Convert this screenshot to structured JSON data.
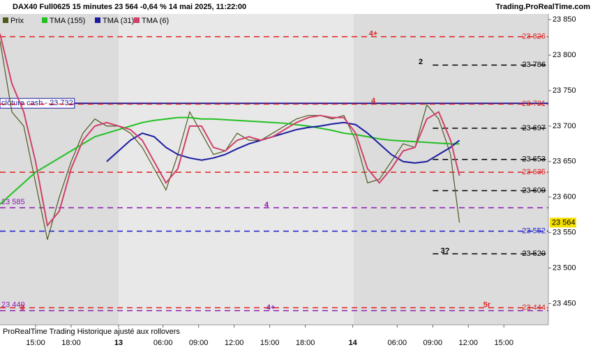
{
  "chart_data": {
    "type": "line",
    "title": "DAX40 Full0625 15 minutes 23 564 -0,64 % 14 mai 2025, 11:22:00",
    "source": "Trading.ProRealTime.com",
    "footer": "ProRealTime Trading  Historique ajusté aux rollovers",
    "xlim": [
      0,
      185
    ],
    "xticks": [
      {
        "value": 12,
        "label": "15:00"
      },
      {
        "value": 24,
        "label": "18:00"
      },
      {
        "value": 40,
        "label": "13"
      },
      {
        "value": 55,
        "label": "06:00"
      },
      {
        "value": 67,
        "label": "09:00"
      },
      {
        "value": 79,
        "label": "12:00"
      },
      {
        "value": 91,
        "label": "15:00"
      },
      {
        "value": 103,
        "label": "18:00"
      },
      {
        "value": 119,
        "label": "14"
      },
      {
        "value": 134,
        "label": "06:00"
      },
      {
        "value": 146,
        "label": "09:00"
      },
      {
        "value": 158,
        "label": "12:00"
      },
      {
        "value": 170,
        "label": "15:00"
      }
    ],
    "ylim": [
      23420,
      23858
    ],
    "yticks": [
      {
        "value": 23450,
        "label": "23 450"
      },
      {
        "value": 23500,
        "label": "23 500"
      },
      {
        "value": 23550,
        "label": "23 550"
      },
      {
        "value": 23600,
        "label": "23 600"
      },
      {
        "value": 23650,
        "label": "23 650"
      },
      {
        "value": 23700,
        "label": "23 700"
      },
      {
        "value": 23750,
        "label": "23 750"
      },
      {
        "value": 23800,
        "label": "23 800"
      },
      {
        "value": 23850,
        "label": "23 850"
      }
    ],
    "x": [
      0,
      4,
      8,
      12,
      16,
      20,
      24,
      28,
      32,
      36,
      40,
      44,
      48,
      52,
      56,
      60,
      64,
      68,
      72,
      76,
      80,
      84,
      88,
      92,
      96,
      100,
      104,
      108,
      112,
      116,
      120,
      124,
      128,
      132,
      136,
      140,
      144,
      148,
      152,
      155
    ],
    "series": [
      {
        "name": "Prix",
        "color": "#4d5a1e",
        "values": [
          23820,
          23720,
          23700,
          23620,
          23540,
          23600,
          23650,
          23690,
          23710,
          23700,
          23700,
          23690,
          23670,
          23640,
          23610,
          23660,
          23720,
          23690,
          23660,
          23665,
          23690,
          23680,
          23680,
          23690,
          23700,
          23710,
          23715,
          23715,
          23710,
          23715,
          23680,
          23620,
          23625,
          23650,
          23675,
          23670,
          23730,
          23710,
          23660,
          23564
        ]
      },
      {
        "name": "TMA (155)",
        "color": "#22c022",
        "values": [
          23590,
          23605,
          23620,
          23635,
          23645,
          23655,
          23665,
          23675,
          23685,
          23690,
          23695,
          23700,
          23705,
          23708,
          23710,
          23712,
          23712,
          23710,
          23710,
          23709,
          23708,
          23707,
          23706,
          23705,
          23704,
          23702,
          23700,
          23697,
          23694,
          23690,
          23688,
          23685,
          23682,
          23680,
          23679,
          23678,
          23677,
          23676,
          23675,
          23675
        ]
      },
      {
        "name": "TMA (31)",
        "color": "#1a1aa0",
        "values": [
          null,
          null,
          null,
          null,
          null,
          null,
          null,
          null,
          null,
          23650,
          23665,
          23680,
          23690,
          23685,
          23670,
          23660,
          23655,
          23652,
          23655,
          23660,
          23668,
          23675,
          23680,
          23685,
          23690,
          23695,
          23698,
          23700,
          23703,
          23705,
          23702,
          23690,
          23675,
          23660,
          23650,
          23648,
          23650,
          23660,
          23670,
          23680
        ]
      },
      {
        "name": "TMA (6)",
        "color": "#d0406a",
        "values": [
          23830,
          23760,
          23720,
          23650,
          23560,
          23580,
          23640,
          23680,
          23700,
          23705,
          23700,
          23695,
          23680,
          23650,
          23620,
          23640,
          23700,
          23700,
          23670,
          23665,
          23680,
          23685,
          23680,
          23685,
          23695,
          23705,
          23712,
          23715,
          23712,
          23712,
          23690,
          23640,
          23620,
          23640,
          23665,
          23670,
          23710,
          23720,
          23680,
          23630
        ]
      }
    ],
    "levels": [
      {
        "value": 23826,
        "label": "23 826",
        "color": "#e02020",
        "dash": true,
        "annotation": "4+"
      },
      {
        "value": 23786,
        "label": "23 786",
        "color": "#000000",
        "dash": true,
        "from": 146,
        "annotation": "2"
      },
      {
        "value": 23732,
        "label": "clôture cash -  23 732",
        "color": "#1a1aa0",
        "dash": false,
        "left": true
      },
      {
        "value": 23731,
        "label": "23 731",
        "color": "#e02020",
        "dash": true,
        "annotation": "4"
      },
      {
        "value": 23697,
        "label": "23 697",
        "color": "#000000",
        "dash": true,
        "from": 146
      },
      {
        "value": 23653,
        "label": "23 653",
        "color": "#000000",
        "dash": true,
        "from": 146
      },
      {
        "value": 23635,
        "label": "23 635",
        "color": "#e02020",
        "dash": true
      },
      {
        "value": 23609,
        "label": "23 609",
        "color": "#000000",
        "dash": true,
        "from": 146
      },
      {
        "value": 23585,
        "label": "23 585",
        "color": "#8a1ab0",
        "dash": true,
        "left": true,
        "annotation": "4"
      },
      {
        "value": 23552,
        "label": "23 552",
        "color": "#1a1acc",
        "dash": true
      },
      {
        "value": 23520,
        "label": "23 520",
        "color": "#000000",
        "dash": true,
        "from": 146,
        "annotation": "3?"
      },
      {
        "value": 23444,
        "label": "23 444",
        "color": "#e02020",
        "dash": true,
        "annotation": "5r",
        "annotation_left": "3"
      },
      {
        "value": 23440,
        "label": "23 440",
        "color": "#8a1ab0",
        "dash": true,
        "left": true,
        "annotation": "4+"
      }
    ],
    "last": {
      "value": 23564,
      "label": "23 564"
    }
  }
}
